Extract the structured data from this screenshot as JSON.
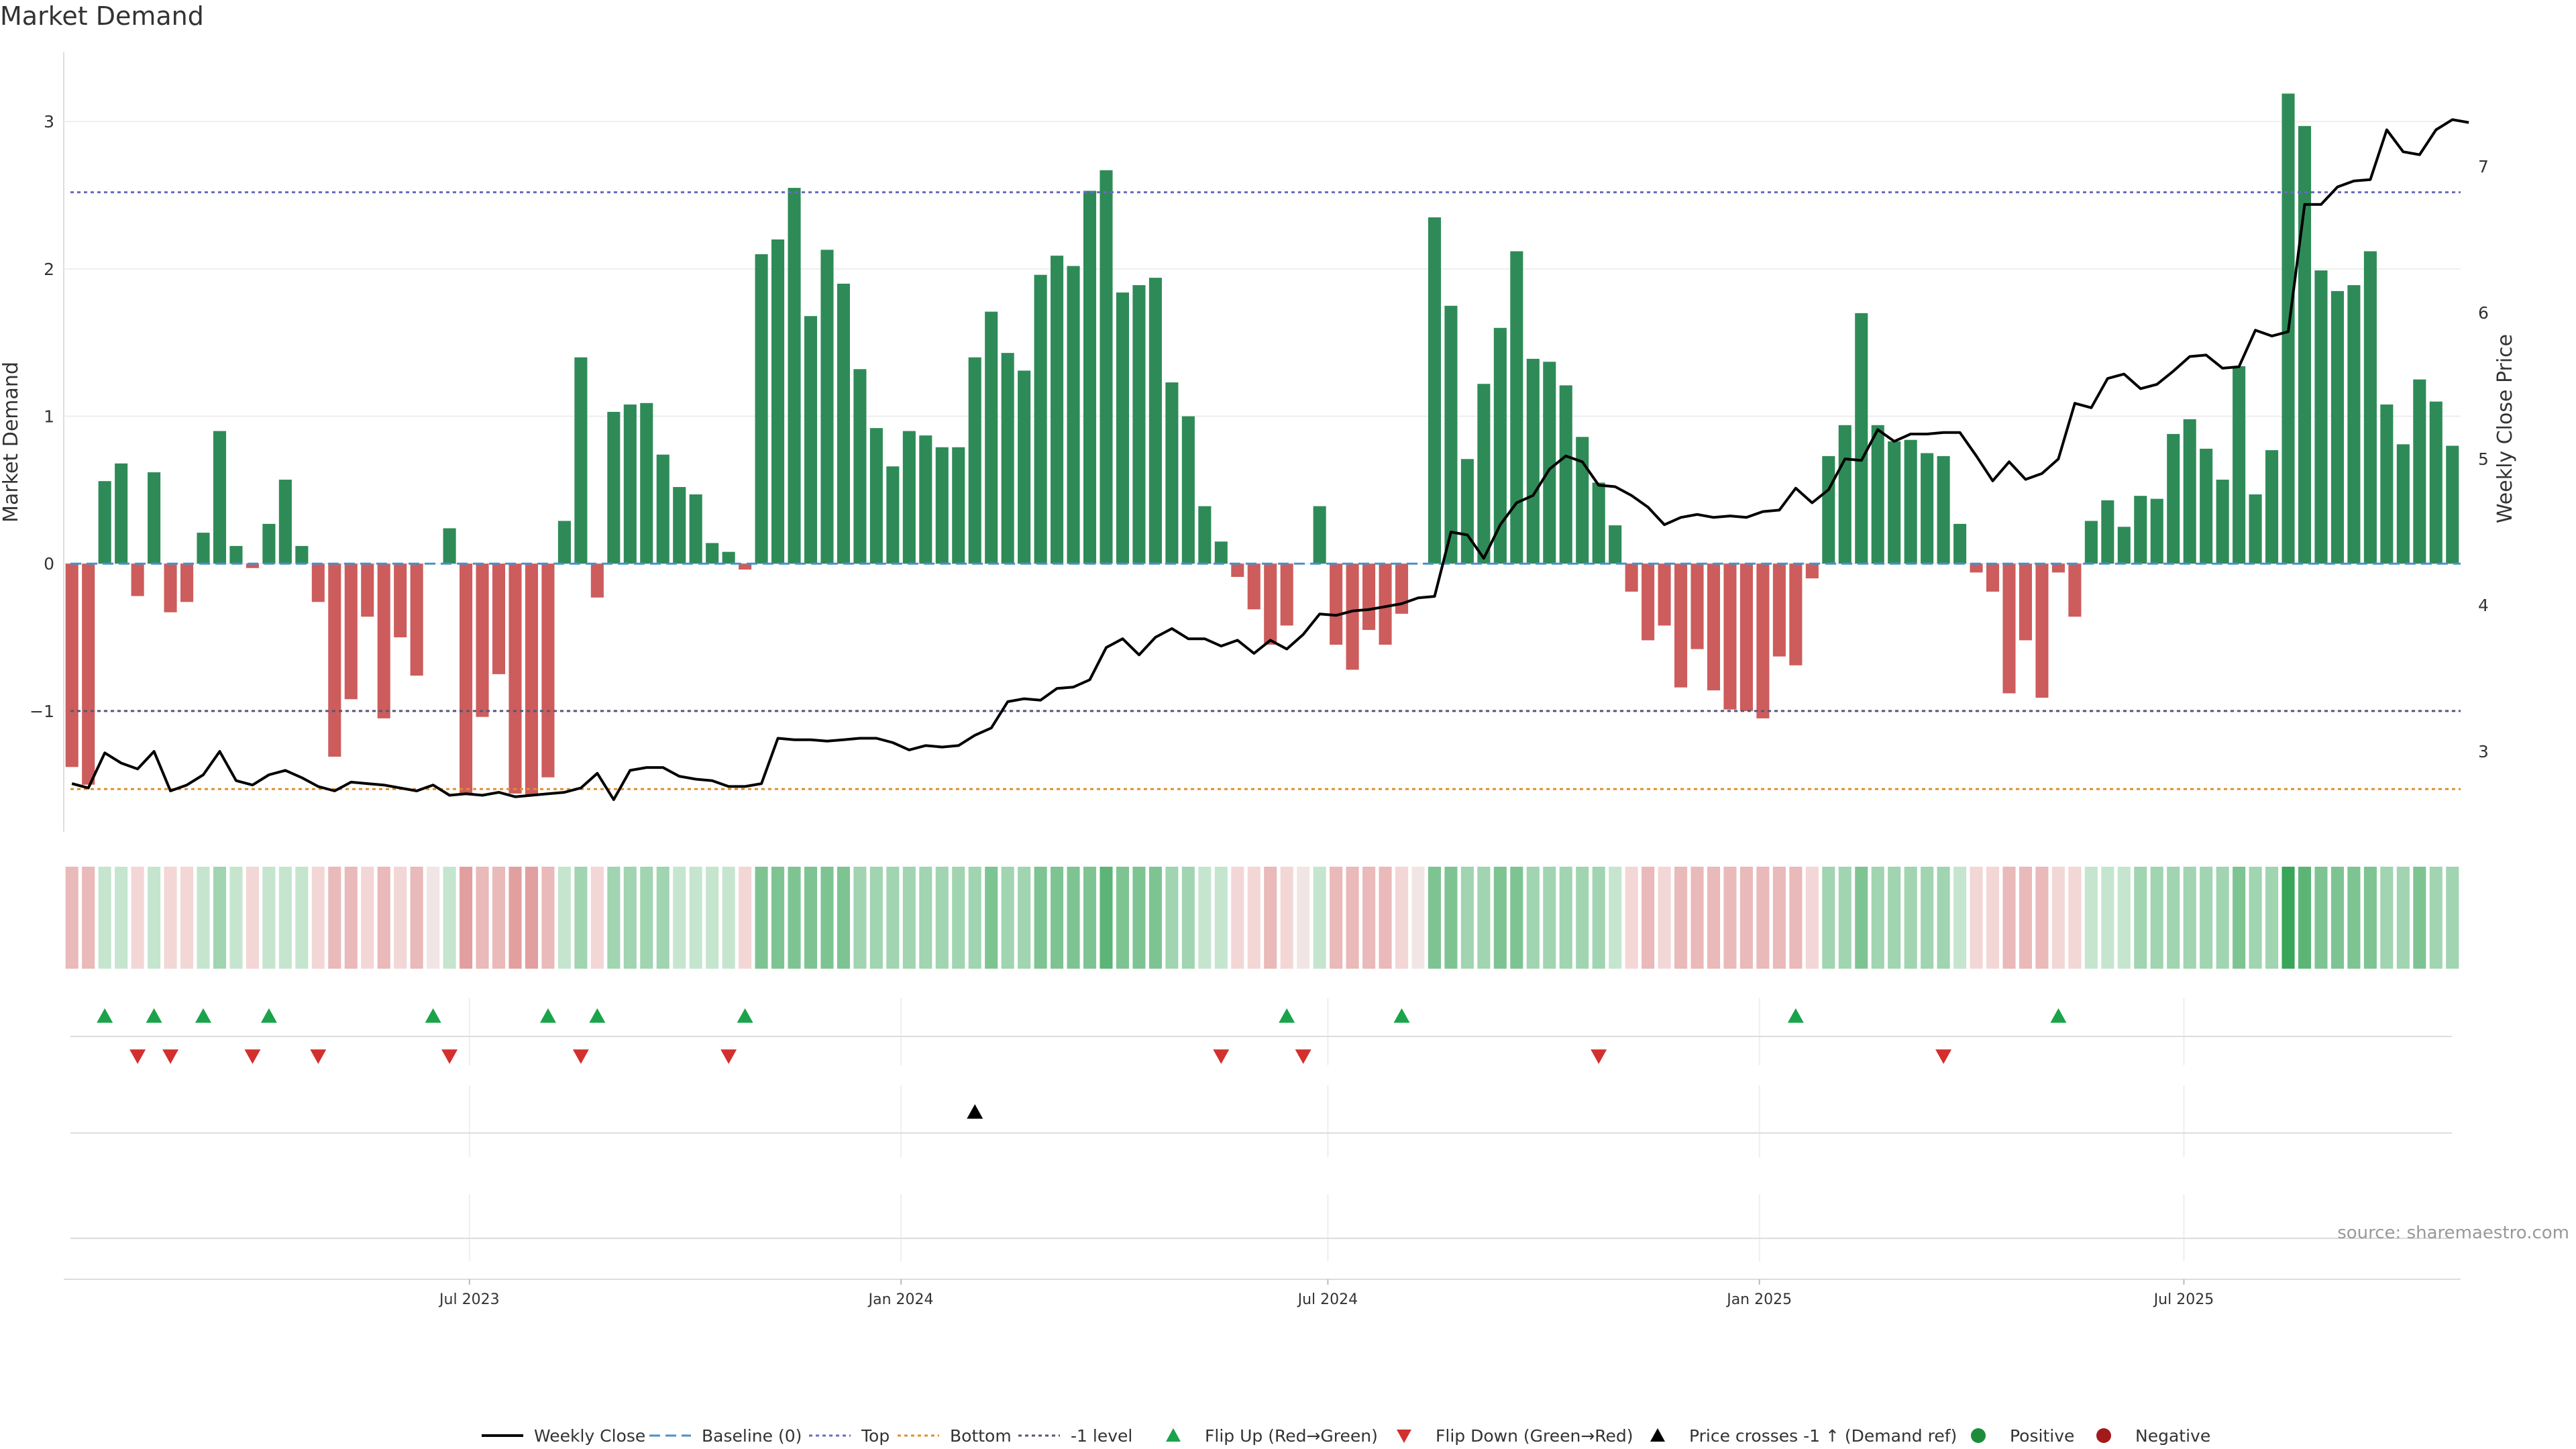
{
  "title": "Market Demand",
  "source_note": "source: sharemaestro.com",
  "colors": {
    "positive": "#2e8b57",
    "negative": "#cd5c5c",
    "price_line": "#000000",
    "baseline": "#4a90c8",
    "top": "#6a6ac0",
    "bottom": "#e0902a",
    "minus_one": "#555577",
    "flip_up": "#1aa34a",
    "flip_down": "#d32f2f",
    "cross": "#000000",
    "pos_dot": "#1e8c3a",
    "neg_dot": "#a31a1a"
  },
  "chart_data": {
    "type": "bar",
    "title": "Market Demand",
    "ylabel": "Market Demand",
    "y2label": "Weekly Close Price",
    "ylim": [
      -1.82,
      3.47
    ],
    "y2lim": [
      2.45,
      7.78
    ],
    "yticks": [
      -1,
      0,
      1,
      2,
      3
    ],
    "ytick_labels": [
      "−1",
      "0",
      "1",
      "2",
      "3"
    ],
    "y2ticks": [
      3,
      4,
      5,
      6,
      7
    ],
    "x_start": "2023-01-09",
    "x_end": "2025-10-27",
    "x_ticks": [
      {
        "date": "2023-07-01",
        "label": "Jul 2023"
      },
      {
        "date": "2024-01-01",
        "label": "Jan 2024"
      },
      {
        "date": "2024-07-01",
        "label": "Jul 2024"
      },
      {
        "date": "2025-01-01",
        "label": "Jan 2025"
      },
      {
        "date": "2025-07-01",
        "label": "Jul 2025"
      }
    ],
    "reference_lines": {
      "baseline": 0,
      "top": 2.52,
      "bottom": -1.53,
      "minus_one": -1
    },
    "demand": [
      -1.38,
      -1.5,
      0.56,
      0.68,
      -0.22,
      0.62,
      -0.33,
      -0.26,
      0.21,
      0.9,
      0.12,
      -0.03,
      0.27,
      0.57,
      0.12,
      -0.26,
      -1.31,
      -0.92,
      -0.36,
      -1.05,
      -0.5,
      -0.76,
      0,
      0.24,
      -1.57,
      -1.04,
      -0.75,
      -1.56,
      -1.57,
      -1.45,
      0.29,
      1.4,
      -0.23,
      1.03,
      1.08,
      1.09,
      0.74,
      0.52,
      0.47,
      0.14,
      0.08,
      -0.04,
      2.1,
      2.2,
      2.55,
      1.68,
      2.13,
      1.9,
      1.32,
      0.92,
      0.66,
      0.9,
      0.87,
      0.79,
      0.79,
      1.4,
      1.71,
      1.43,
      1.31,
      1.96,
      2.09,
      2.02,
      2.53,
      2.67,
      1.84,
      1.89,
      1.94,
      1.23,
      1,
      0.39,
      0.15,
      -0.09,
      -0.31,
      -0.55,
      -0.42,
      0,
      0.39,
      -0.55,
      -0.72,
      -0.45,
      -0.55,
      -0.34,
      0,
      2.35,
      1.75,
      0.71,
      1.22,
      1.6,
      2.12,
      1.39,
      1.37,
      1.21,
      0.86,
      0.55,
      0.26,
      -0.19,
      -0.52,
      -0.42,
      -0.84,
      -0.58,
      -0.86,
      -0.99,
      -1.0,
      -1.05,
      -0.63,
      -0.69,
      -0.1,
      0.73,
      0.94,
      1.7,
      0.94,
      0.83,
      0.84,
      0.75,
      0.73,
      0.27,
      -0.06,
      -0.19,
      -0.88,
      -0.52,
      -0.91,
      -0.06,
      -0.36,
      0.29,
      0.43,
      0.25,
      0.46,
      0.44,
      0.88,
      0.98,
      0.78,
      0.57,
      1.34,
      0.47,
      0.77,
      3.19,
      2.97,
      1.99,
      1.85,
      1.89,
      2.12,
      1.08,
      0.81,
      1.25,
      1.1,
      0.8
    ],
    "price": [
      2.78,
      2.75,
      2.99,
      2.92,
      2.88,
      3.0,
      2.73,
      2.77,
      2.84,
      3.0,
      2.8,
      2.77,
      2.84,
      2.87,
      2.82,
      2.76,
      2.73,
      2.79,
      2.78,
      2.77,
      2.75,
      2.73,
      2.77,
      2.7,
      2.71,
      2.7,
      2.72,
      2.69,
      2.7,
      2.71,
      2.72,
      2.75,
      2.85,
      2.67,
      2.87,
      2.89,
      2.89,
      2.83,
      2.81,
      2.8,
      2.76,
      2.76,
      2.78,
      3.09,
      3.08,
      3.08,
      3.07,
      3.08,
      3.09,
      3.09,
      3.06,
      3.01,
      3.04,
      3.03,
      3.04,
      3.11,
      3.16,
      3.34,
      3.36,
      3.35,
      3.43,
      3.44,
      3.49,
      3.71,
      3.77,
      3.66,
      3.78,
      3.84,
      3.77,
      3.77,
      3.72,
      3.76,
      3.67,
      3.76,
      3.7,
      3.8,
      3.94,
      3.93,
      3.96,
      3.97,
      3.99,
      4.01,
      4.05,
      4.06,
      4.5,
      4.48,
      4.32,
      4.55,
      4.7,
      4.75,
      4.93,
      5.02,
      4.98,
      4.82,
      4.81,
      4.75,
      4.67,
      4.55,
      4.6,
      4.62,
      4.6,
      4.61,
      4.6,
      4.64,
      4.65,
      4.8,
      4.7,
      4.79,
      5.0,
      4.99,
      5.2,
      5.12,
      5.17,
      5.17,
      5.18,
      5.18,
      5.02,
      4.85,
      4.98,
      4.86,
      4.9,
      5.0,
      5.38,
      5.35,
      5.55,
      5.58,
      5.48,
      5.51,
      5.6,
      5.7,
      5.71,
      5.62,
      5.63,
      5.88,
      5.84,
      5.87,
      6.74,
      6.74,
      6.86,
      6.9,
      6.91,
      7.25,
      7.1,
      7.08,
      7.25,
      7.32,
      7.3
    ],
    "heat_levels": [
      -2,
      -2,
      1,
      1,
      -1,
      1,
      -1,
      -1,
      1,
      2,
      1,
      -1,
      1,
      1,
      1,
      -1,
      -2,
      -2,
      -1,
      -2,
      -1,
      -2,
      0,
      1,
      -3,
      -2,
      -2,
      -3,
      -3,
      -2,
      1,
      2,
      -1,
      2,
      2,
      2,
      2,
      1,
      1,
      1,
      1,
      -1,
      3,
      3,
      3,
      3,
      3,
      3,
      2,
      2,
      2,
      2,
      2,
      2,
      2,
      2,
      3,
      2,
      2,
      3,
      3,
      3,
      3,
      4,
      3,
      3,
      3,
      2,
      2,
      1,
      1,
      -1,
      -1,
      -2,
      -1,
      0,
      1,
      -2,
      -2,
      -2,
      -2,
      -1,
      0,
      3,
      3,
      2,
      2,
      3,
      3,
      2,
      2,
      2,
      2,
      2,
      1,
      -1,
      -2,
      -1,
      -2,
      -2,
      -2,
      -2,
      -2,
      -2,
      -2,
      -2,
      -1,
      2,
      2,
      3,
      2,
      2,
      2,
      2,
      2,
      1,
      -1,
      -1,
      -2,
      -2,
      -2,
      -1,
      -1,
      1,
      1,
      1,
      2,
      2,
      2,
      2,
      2,
      2,
      3,
      2,
      2,
      5,
      4,
      3,
      3,
      3,
      3,
      2,
      2,
      3,
      2,
      2
    ],
    "flip_up_idx": [
      2,
      5,
      8,
      12,
      22,
      29,
      32,
      41,
      74,
      81,
      105,
      121
    ],
    "flip_down_idx": [
      4,
      6,
      11,
      15,
      23,
      31,
      40,
      70,
      75,
      93,
      114
    ],
    "cross_idx": [
      55
    ],
    "legend": [
      {
        "key": "weekly_close",
        "label": "Weekly Close",
        "marker": "line"
      },
      {
        "key": "baseline",
        "label": "Baseline (0)",
        "marker": "dash"
      },
      {
        "key": "top",
        "label": "Top",
        "marker": "dot"
      },
      {
        "key": "bottom",
        "label": "Bottom",
        "marker": "dot"
      },
      {
        "key": "minus_one",
        "label": "-1 level",
        "marker": "dot"
      },
      {
        "key": "flip_up",
        "label": "Flip Up (Red→Green)",
        "marker": "triangle-up"
      },
      {
        "key": "flip_down",
        "label": "Flip Down (Green→Red)",
        "marker": "triangle-down"
      },
      {
        "key": "cross",
        "label": "Price crosses -1 ↑ (Demand ref)",
        "marker": "triangle-up"
      },
      {
        "key": "pos_dot",
        "label": "Positive",
        "marker": "circle"
      },
      {
        "key": "neg_dot",
        "label": "Negative",
        "marker": "circle"
      }
    ]
  }
}
